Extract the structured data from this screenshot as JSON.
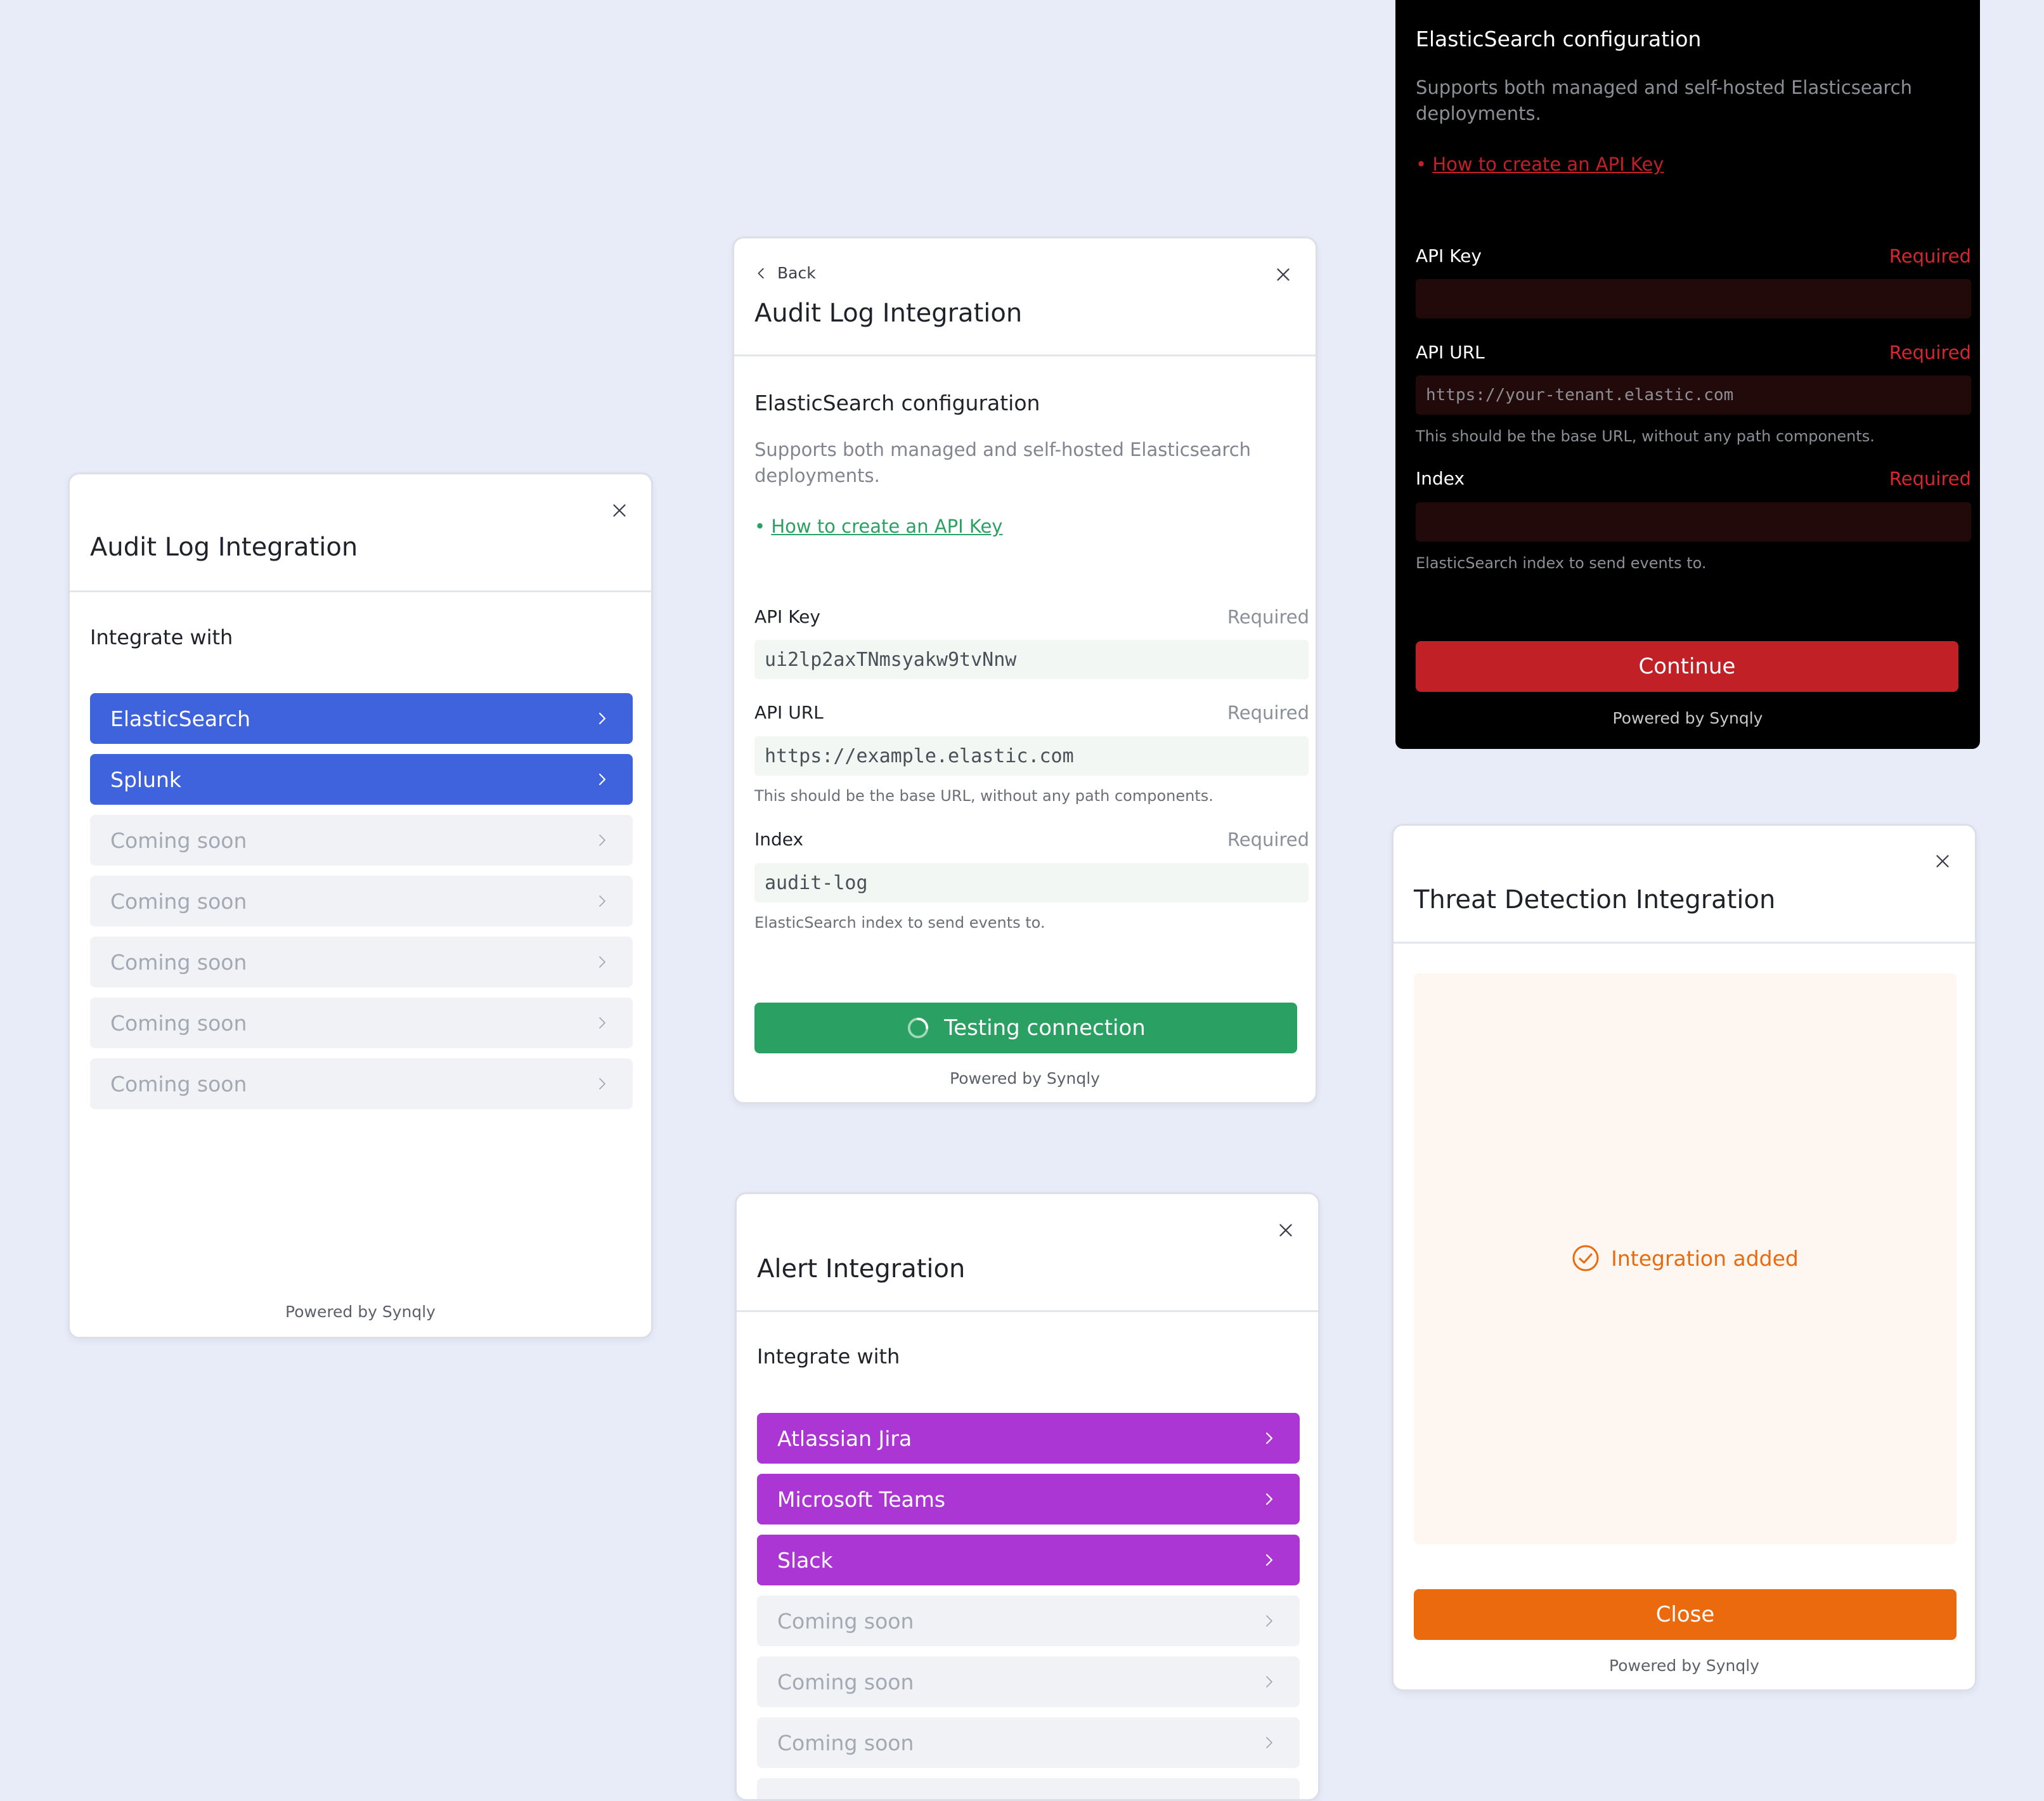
{
  "colors": {
    "background": "#e8ecf8",
    "audit_primary": "#3f63dc",
    "alert_primary": "#ab36d4",
    "config_green": "#2aa163",
    "dark_accent": "#c02026",
    "threat_orange": "#ec6a0e"
  },
  "audit_list": {
    "title": "Audit Log Integration",
    "section_label": "Integrate with",
    "items": [
      {
        "label": "ElasticSearch",
        "state": "enabled"
      },
      {
        "label": "Splunk",
        "state": "enabled"
      },
      {
        "label": "Coming soon",
        "state": "disabled"
      },
      {
        "label": "Coming soon",
        "state": "disabled"
      },
      {
        "label": "Coming soon",
        "state": "disabled"
      },
      {
        "label": "Coming soon",
        "state": "disabled"
      },
      {
        "label": "Coming soon",
        "state": "disabled"
      }
    ],
    "chevron_icon": "chevron-right-icon",
    "close_icon": "close-icon",
    "powered_by": "Powered by Synqly"
  },
  "audit_config": {
    "back_label": "Back",
    "title": "Audit Log Integration",
    "section_title": "ElasticSearch configuration",
    "description": "Supports both managed and self-hosted Elasticsearch deployments.",
    "bullet": "•",
    "help_link": "How to create an API Key",
    "fields": {
      "api_key": {
        "label": "API Key",
        "required": "Required",
        "value": "ui2lp2axTNmsyakw9tvNnw"
      },
      "api_url": {
        "label": "API URL",
        "required": "Required",
        "value": "https://example.elastic.com",
        "hint": "This should be the base URL, without any path components."
      },
      "index": {
        "label": "Index",
        "required": "Required",
        "value": "audit-log",
        "hint": "ElasticSearch index to send events to."
      }
    },
    "submit_label": "Testing connection",
    "submit_state": "loading",
    "powered_by": "Powered by Synqly"
  },
  "dark_config": {
    "section_title": "ElasticSearch configuration",
    "description": "Supports both managed and self-hosted Elasticsearch deployments.",
    "bullet": "•",
    "help_link": "How to create an API Key",
    "fields": {
      "api_key": {
        "label": "API Key",
        "required": "Required",
        "value": ""
      },
      "api_url": {
        "label": "API URL",
        "required": "Required",
        "placeholder": "https://your-tenant.elastic.com",
        "hint": "This should be the base URL, without any path components."
      },
      "index": {
        "label": "Index",
        "required": "Required",
        "value": "",
        "hint": "ElasticSearch index to send events to."
      }
    },
    "continue_label": "Continue",
    "powered_by": "Powered by Synqly"
  },
  "alert_list": {
    "title": "Alert Integration",
    "section_label": "Integrate with",
    "items": [
      {
        "label": "Atlassian Jira",
        "state": "enabled"
      },
      {
        "label": "Microsoft Teams",
        "state": "enabled"
      },
      {
        "label": "Slack",
        "state": "enabled"
      },
      {
        "label": "Coming soon",
        "state": "disabled"
      },
      {
        "label": "Coming soon",
        "state": "disabled"
      },
      {
        "label": "Coming soon",
        "state": "disabled"
      }
    ]
  },
  "threat": {
    "title": "Threat Detection Integration",
    "status_text": "Integration added",
    "status_icon": "check-circle-icon",
    "close_label": "Close",
    "powered_by": "Powered by Synqly"
  }
}
